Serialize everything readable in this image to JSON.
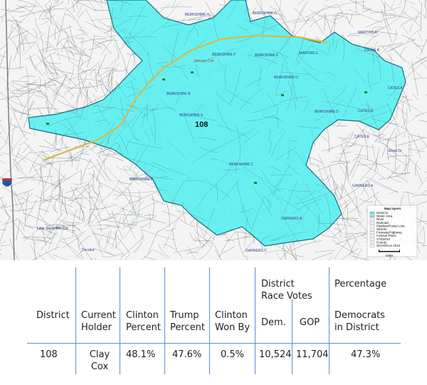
{
  "map": {
    "district_number": "108",
    "area_labels": [
      "BERKSHIRE P",
      "BERKSHIRE F",
      "BERKSHIRE E",
      "BERKSHIRE B",
      "BERKSHIRE O",
      "BERKSHIRE D",
      "BERKSHIRE C",
      "BERKSHIRE A",
      "GARNERS B",
      "GARNERS A",
      "GARNERS C",
      "MARTINS C",
      "MARTINS A",
      "CATES D",
      "CATES B",
      "CATES E",
      "CATES A",
      "BERKSHIRE G",
      "BERKSHIRE H"
    ],
    "place_labels": [
      "Johnson Crk",
      "Little Stone Mtn Crk",
      "Decatur",
      "Shoal Cr"
    ],
    "legend": {
      "title": "Map layers",
      "items": [
        "Districts",
        "Water Area",
        "River",
        "Railroad",
        "Pipeline/Power Line",
        "Streets",
        "Freeway/Highway",
        "Census Place",
        "VTD2010",
        "County",
        "SCHOOLS 2012"
      ],
      "scale": "Miles"
    },
    "colors": {
      "district_fill": "#59f0f0",
      "district_stroke": "#1a6f7a",
      "street": "#6a6a6a",
      "highway": "#d9b84a"
    },
    "icons": [
      "interstate-shield-icon",
      "school-icon",
      "scale-bar-icon"
    ]
  },
  "table": {
    "headers": {
      "district": "District",
      "holder_line1": "Current",
      "holder_line2": "Holder",
      "clinton_line1": "Clinton",
      "clinton_line2": "Percent",
      "trump_line1": "Trump",
      "trump_line2": "Percent",
      "wonby_line1": "Clinton",
      "wonby_line2": "Won By",
      "votes_group_line1": "District",
      "votes_group_line2": "Race Votes",
      "dem": "Dem.",
      "gop": "GOP",
      "pct_group": "Percentage",
      "pct_line1": "Democrats",
      "pct_line2": "in District"
    },
    "row": {
      "district": "108",
      "holder_line1": "Clay",
      "holder_line2": "Cox",
      "clinton_percent": "48.1%",
      "trump_percent": "47.6%",
      "clinton_won_by": "0.5%",
      "dem_votes": "10,524",
      "gop_votes": "11,704",
      "pct_democrats": "47.3%"
    }
  }
}
